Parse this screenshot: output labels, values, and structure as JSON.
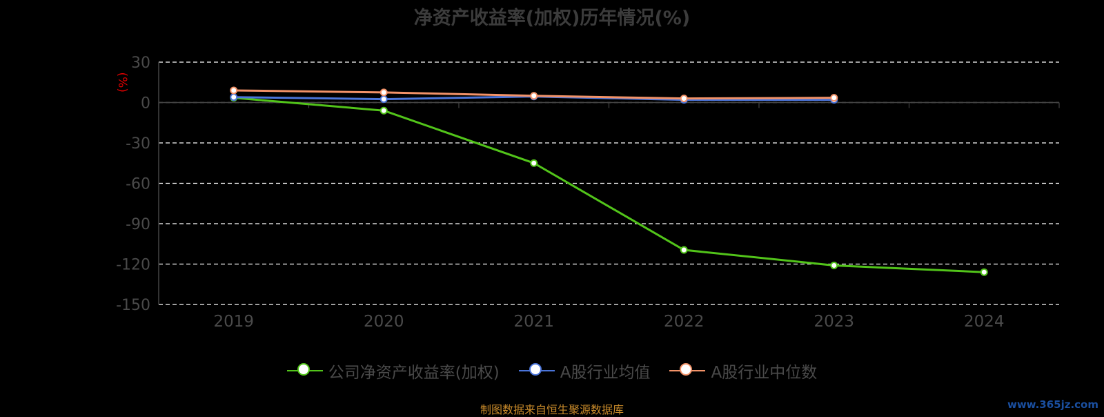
{
  "title": "净资产收益率(加权)历年情况(%)",
  "source_note": "制图数据来自恒生聚源数据库",
  "watermark": "www.365jz.com",
  "chart_data": {
    "type": "line",
    "title": "净资产收益率(加权)历年情况(%)",
    "ylabel": "(%)",
    "xlabel": "",
    "categories": [
      "2019",
      "2020",
      "2021",
      "2022",
      "2023",
      "2024"
    ],
    "ylim": [
      -150,
      30
    ],
    "yticks": [
      30,
      0,
      -30,
      -60,
      -90,
      -120,
      -150
    ],
    "grid": true,
    "legend_position": "bottom",
    "series": [
      {
        "name": "公司净资产收益率(加权)",
        "color": "#52c41a",
        "values": [
          3.5,
          -6.0,
          -45.0,
          -109.5,
          -121.0,
          -126.0
        ]
      },
      {
        "name": "A股行业均值",
        "color": "#4a74d9",
        "values": [
          4.0,
          2.5,
          4.5,
          2.0,
          2.0,
          null
        ]
      },
      {
        "name": "A股行业中位数",
        "color": "#f29268",
        "values": [
          9.0,
          7.5,
          5.0,
          3.0,
          3.5,
          null
        ]
      }
    ]
  }
}
